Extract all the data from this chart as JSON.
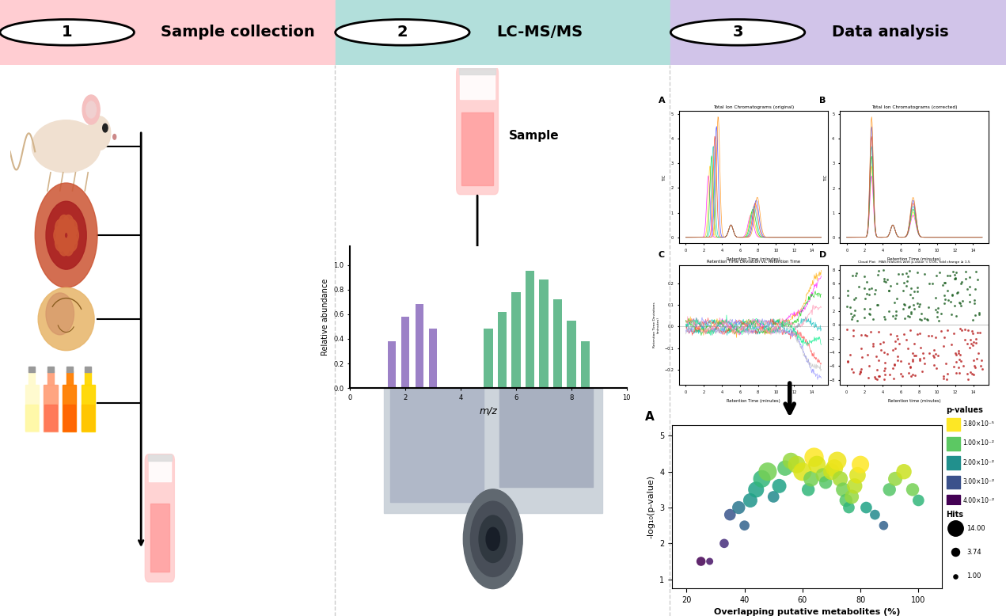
{
  "header_colors": [
    "#FFCDD2",
    "#B2DFDB",
    "#D1C4E9"
  ],
  "header_labels": [
    "Sample collection",
    "LC-MS/MS",
    "Data analysis"
  ],
  "header_numbers": [
    "1",
    "2",
    "3"
  ],
  "bg_color": "#FFFFFF",
  "scatter_x": [
    25,
    28,
    33,
    35,
    38,
    40,
    42,
    44,
    46,
    48,
    50,
    52,
    54,
    56,
    58,
    60,
    62,
    63,
    64,
    65,
    67,
    68,
    70,
    71,
    72,
    73,
    74,
    75,
    76,
    77,
    78,
    79,
    80,
    82,
    85,
    88,
    90,
    92,
    95,
    98,
    100
  ],
  "scatter_y": [
    1.5,
    1.5,
    2.0,
    2.8,
    3.0,
    2.5,
    3.2,
    3.5,
    3.8,
    4.0,
    3.3,
    3.6,
    4.1,
    4.3,
    4.2,
    4.0,
    3.5,
    3.8,
    4.4,
    4.2,
    3.9,
    3.7,
    4.0,
    4.1,
    4.3,
    3.8,
    3.5,
    3.2,
    3.0,
    3.3,
    3.6,
    3.9,
    4.2,
    3.0,
    2.8,
    2.5,
    3.5,
    3.8,
    4.0,
    3.5,
    3.2
  ],
  "scatter_size": [
    5,
    3,
    5,
    8,
    10,
    6,
    12,
    15,
    18,
    20,
    8,
    12,
    14,
    16,
    18,
    20,
    10,
    14,
    22,
    18,
    12,
    10,
    16,
    18,
    20,
    14,
    12,
    10,
    8,
    12,
    14,
    16,
    18,
    8,
    6,
    5,
    10,
    12,
    14,
    10,
    8
  ],
  "scatter_pval": [
    0.04,
    0.038,
    0.035,
    0.03,
    0.025,
    0.028,
    0.02,
    0.018,
    0.015,
    0.01,
    0.022,
    0.018,
    0.012,
    0.008,
    0.006,
    0.004,
    0.015,
    0.01,
    0.002,
    0.004,
    0.008,
    0.012,
    0.005,
    0.004,
    0.003,
    0.007,
    0.01,
    0.012,
    0.015,
    0.008,
    0.006,
    0.004,
    0.002,
    0.018,
    0.022,
    0.028,
    0.012,
    0.008,
    0.005,
    0.01,
    0.015
  ],
  "scatter_xlabel": "Overlapping putative metabolites (%)",
  "scatter_ylabel": "-log₁₀(p-value)",
  "scatter_panel_label": "A",
  "pval_legend_labels": [
    "3.80×10⁻⁵",
    "1.00×10⁻²",
    "2.00×10⁻²",
    "3.00×10⁻²",
    "4.00×10⁻²"
  ],
  "hit_sizes": [
    14.0,
    3.74,
    1.0
  ],
  "hit_labels": [
    "14.00",
    "3.74",
    "1.00"
  ]
}
